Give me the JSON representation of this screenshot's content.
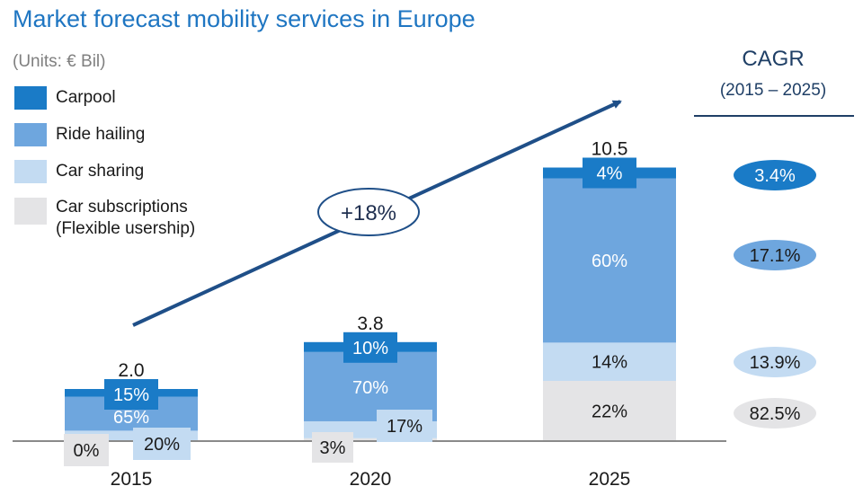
{
  "title": "Market forecast mobility services in Europe",
  "units": "(Units: € Bil)",
  "legend": [
    {
      "label": "Carpool",
      "color": "#1a7bc7"
    },
    {
      "label": "Ride hailing",
      "color": "#6ea6de"
    },
    {
      "label": "Car sharing",
      "color": "#c3dbf2"
    },
    {
      "label": "Car subscriptions",
      "label2": "(Flexible usership)",
      "color": "#e4e4e6"
    }
  ],
  "cagr": {
    "title": "CAGR",
    "period": "(2015 – 2025)",
    "badges": [
      {
        "label": "3.4%",
        "fill": "#1a7bc7",
        "text": "#ffffff"
      },
      {
        "label": "17.1%",
        "fill": "#6ea6de",
        "text": "#1a1a1a"
      },
      {
        "label": "13.9%",
        "fill": "#c3dbf2",
        "text": "#1a1a1a"
      },
      {
        "label": "82.5%",
        "fill": "#e4e4e6",
        "text": "#1a1a1a"
      }
    ]
  },
  "growth": {
    "label": "+18%",
    "color": "#1f4f88"
  },
  "chart_data": {
    "type": "bar",
    "stacked": true,
    "categories": [
      "2015",
      "2020",
      "2025"
    ],
    "totals": [
      2.0,
      3.8,
      10.5
    ],
    "total_labels": [
      "2.0",
      "3.8",
      "10.5"
    ],
    "series": [
      {
        "name": "Car subscriptions (Flexible usership)",
        "values": [
          0.0,
          0.11,
          2.31
        ],
        "labels": [
          "0%",
          "3%",
          "22%"
        ],
        "color": "#e4e4e6",
        "text": "#1a1a1a"
      },
      {
        "name": "Car sharing",
        "values": [
          0.4,
          0.65,
          1.47
        ],
        "labels": [
          "20%",
          "17%",
          "14%"
        ],
        "color": "#c3dbf2",
        "text": "#1a1a1a"
      },
      {
        "name": "Ride hailing",
        "values": [
          1.3,
          2.66,
          6.3
        ],
        "labels": [
          "65%",
          "70%",
          "60%"
        ],
        "color": "#6ea6de",
        "text": "#ffffff"
      },
      {
        "name": "Carpool",
        "values": [
          0.3,
          0.38,
          0.42
        ],
        "labels": [
          "15%",
          "10%",
          "4%"
        ],
        "color": "#1a7bc7",
        "text": "#ffffff"
      }
    ]
  }
}
